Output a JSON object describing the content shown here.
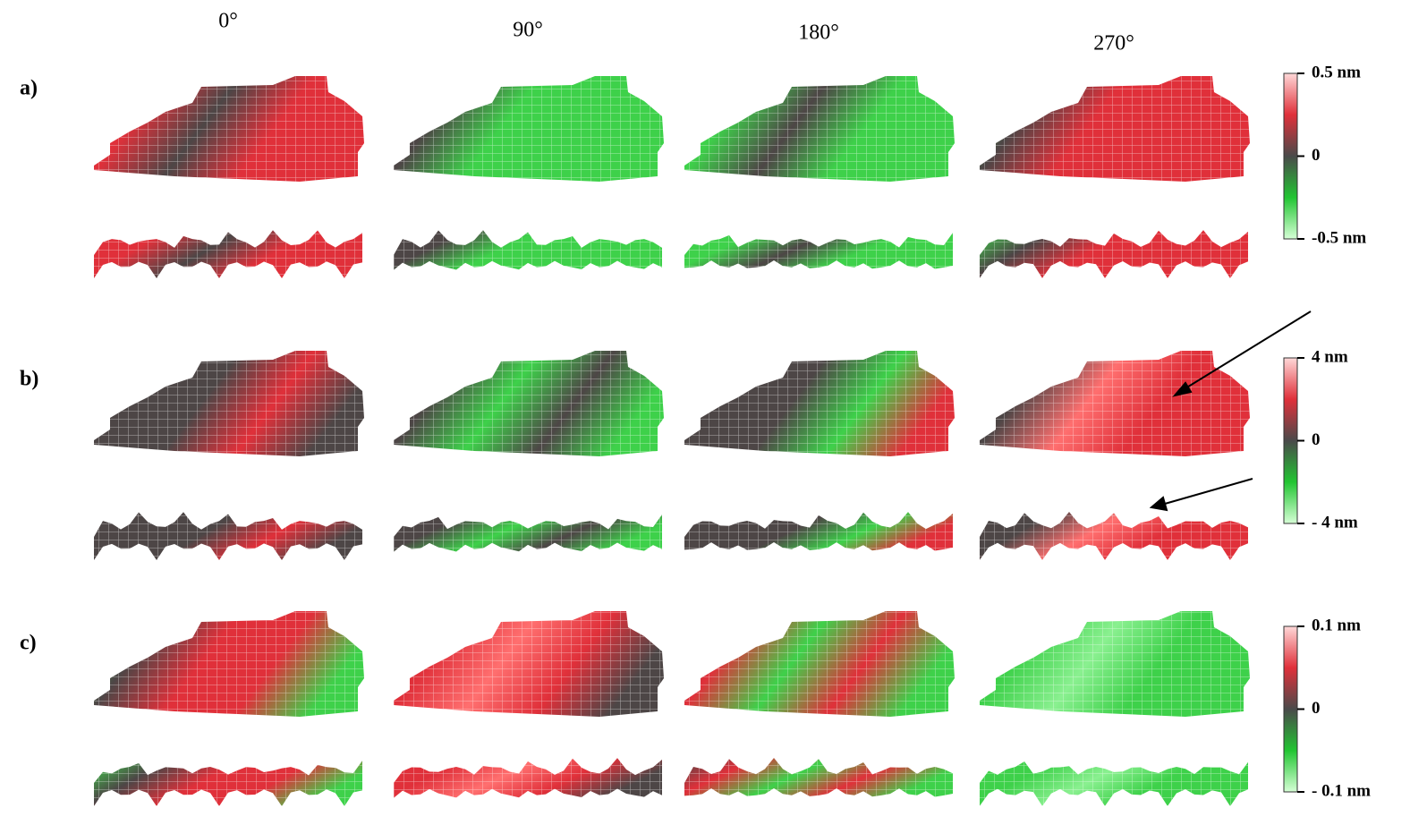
{
  "columns": [
    "0°",
    "90°",
    "180°",
    "270°"
  ],
  "rows": [
    {
      "label": "a)",
      "colorbar": {
        "max": "0.5 nm",
        "mid": "0",
        "min": "-0.5 nm"
      }
    },
    {
      "label": "b)",
      "colorbar": {
        "max": "4 nm",
        "mid": "0",
        "min": "- 4 nm"
      }
    },
    {
      "label": "c)",
      "colorbar": {
        "max": "0.1 nm",
        "mid": "0",
        "min": "- 0.1 nm"
      }
    }
  ]
}
